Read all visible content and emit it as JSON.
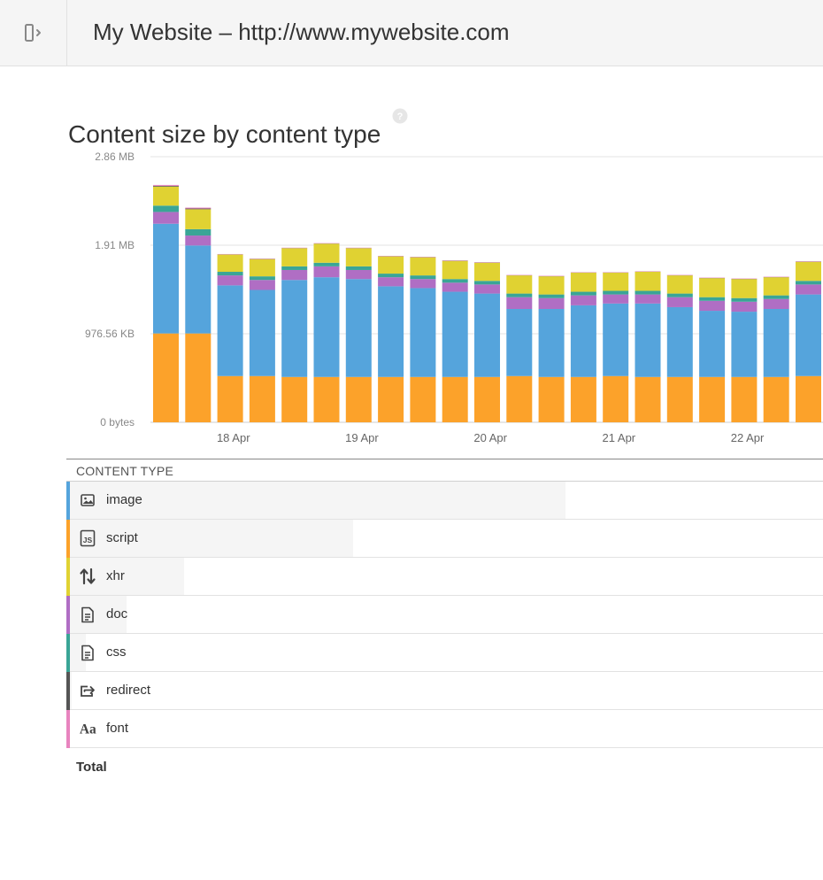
{
  "header": {
    "title": "My Website – http://www.mywebsite.com",
    "toggle_icon": "sidebar-collapse-icon"
  },
  "section": {
    "title": "Content size by content type",
    "help_icon": "help-icon"
  },
  "colors": {
    "image": "#55a4dc",
    "script": "#fca22a",
    "xhr": "#e0d232",
    "doc": "#b06ec4",
    "css": "#3aa596",
    "redirect": "#555555",
    "font": "#e884bf"
  },
  "chart_data": {
    "type": "bar",
    "stacked": true,
    "y_ticks": [
      "0 bytes",
      "976.56 KB",
      "1.91 MB",
      "2.86 MB"
    ],
    "y_tick_values_kb": [
      0,
      976.56,
      1953.13,
      2929.69
    ],
    "ylim_kb": [
      0,
      2929.69
    ],
    "x_ticks": [
      "18 Apr",
      "19 Apr",
      "20 Apr",
      "21 Apr",
      "22 Apr"
    ],
    "x_tick_bar_index": [
      2.5,
      6.5,
      10.5,
      14.5,
      18.5
    ],
    "grid": true,
    "series_order": [
      "script",
      "image",
      "doc",
      "css",
      "xhr",
      "redirect",
      "font"
    ],
    "series": [
      {
        "name": "script",
        "values": [
          980,
          980,
          510,
          510,
          500,
          500,
          500,
          500,
          500,
          500,
          500,
          510,
          500,
          500,
          510,
          500,
          500,
          500,
          500,
          500,
          510
        ]
      },
      {
        "name": "image",
        "values": [
          1210,
          970,
          1000,
          950,
          1070,
          1100,
          1080,
          1000,
          980,
          940,
          920,
          740,
          750,
          790,
          800,
          810,
          770,
          730,
          720,
          750,
          900
        ]
      },
      {
        "name": "doc",
        "values": [
          130,
          110,
          110,
          110,
          110,
          120,
          100,
          100,
          100,
          100,
          100,
          130,
          120,
          110,
          100,
          100,
          110,
          110,
          110,
          110,
          110
        ]
      },
      {
        "name": "css",
        "values": [
          70,
          70,
          40,
          40,
          40,
          40,
          40,
          40,
          40,
          40,
          40,
          40,
          40,
          40,
          40,
          40,
          40,
          40,
          40,
          40,
          40
        ]
      },
      {
        "name": "xhr",
        "values": [
          210,
          220,
          190,
          190,
          200,
          210,
          200,
          190,
          200,
          200,
          200,
          200,
          200,
          210,
          200,
          210,
          200,
          210,
          210,
          200,
          210
        ]
      },
      {
        "name": "redirect",
        "values": [
          8,
          8,
          2,
          2,
          2,
          2,
          2,
          2,
          2,
          2,
          2,
          2,
          2,
          2,
          2,
          2,
          2,
          2,
          2,
          2,
          2
        ]
      },
      {
        "name": "font",
        "values": [
          10,
          10,
          4,
          4,
          4,
          4,
          4,
          4,
          4,
          4,
          4,
          4,
          4,
          4,
          4,
          4,
          4,
          4,
          4,
          4,
          4
        ]
      }
    ]
  },
  "table": {
    "header": "CONTENT TYPE",
    "rows": [
      {
        "key": "image",
        "label": "image",
        "icon": "image-icon",
        "share": 0.66
      },
      {
        "key": "script",
        "label": "script",
        "icon": "js-file-icon",
        "share": 0.379
      },
      {
        "key": "xhr",
        "label": "xhr",
        "icon": "up-down-arrows-icon",
        "share": 0.155
      },
      {
        "key": "doc",
        "label": "doc",
        "icon": "document-icon",
        "share": 0.079
      },
      {
        "key": "css",
        "label": "css",
        "icon": "document-icon",
        "share": 0.026
      },
      {
        "key": "redirect",
        "label": "redirect",
        "icon": "redirect-arrow-icon",
        "share": 0.007
      },
      {
        "key": "font",
        "label": "font",
        "icon": "font-icon",
        "share": 0.004
      }
    ],
    "total_label": "Total"
  }
}
